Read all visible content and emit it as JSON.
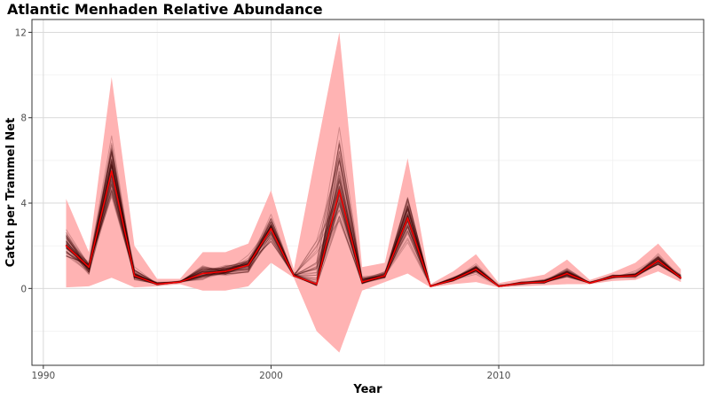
{
  "chart_data": {
    "type": "line",
    "title": "Atlantic Menhaden Relative Abundance",
    "xlabel": "Year",
    "ylabel": "Catch per Trammel Net",
    "xlim": [
      1989.5,
      2019
    ],
    "ylim": [
      -3.6,
      12.6
    ],
    "x_ticks": [
      1990,
      2000,
      2010
    ],
    "y_ticks": [
      0,
      4,
      8,
      12
    ],
    "grid": true,
    "legend": "none",
    "colors": {
      "ribbon": "#ffb3b3",
      "index_line": "#ff0000",
      "bootstrap_lines": "#3a0000",
      "grid_major": "#d9d9d9",
      "grid_minor": "#ededed",
      "panel_border": "#333333"
    },
    "x": [
      1991,
      1992,
      1993,
      1994,
      1995,
      1996,
      1997,
      1998,
      1999,
      2000,
      2001,
      2002,
      2003,
      2004,
      2005,
      2006,
      2007,
      2008,
      2009,
      2010,
      2011,
      2012,
      2013,
      2014,
      2015,
      2016,
      2017,
      2018
    ],
    "series": [
      {
        "role": "ribbon",
        "lower": [
          0.05,
          0.1,
          0.5,
          0.05,
          0.1,
          0.2,
          -0.1,
          -0.1,
          0.1,
          1.2,
          0.5,
          -2.0,
          -3.0,
          -0.1,
          0.3,
          0.7,
          0.05,
          0.2,
          0.3,
          0.05,
          0.1,
          0.15,
          0.2,
          0.2,
          0.35,
          0.4,
          0.8,
          0.3
        ],
        "upper": [
          4.2,
          1.7,
          9.9,
          2.0,
          0.45,
          0.45,
          1.7,
          1.7,
          2.1,
          4.6,
          0.9,
          6.5,
          12.0,
          1.0,
          1.2,
          6.1,
          0.2,
          0.8,
          1.6,
          0.25,
          0.45,
          0.65,
          1.35,
          0.4,
          0.75,
          1.2,
          2.1,
          0.9
        ]
      },
      {
        "role": "index",
        "values": [
          2.0,
          1.0,
          5.5,
          0.6,
          0.2,
          0.3,
          0.7,
          0.8,
          1.1,
          2.8,
          0.6,
          0.2,
          4.6,
          0.3,
          0.6,
          3.3,
          0.1,
          0.4,
          0.9,
          0.1,
          0.25,
          0.3,
          0.7,
          0.25,
          0.55,
          0.6,
          1.3,
          0.5
        ]
      }
    ]
  }
}
